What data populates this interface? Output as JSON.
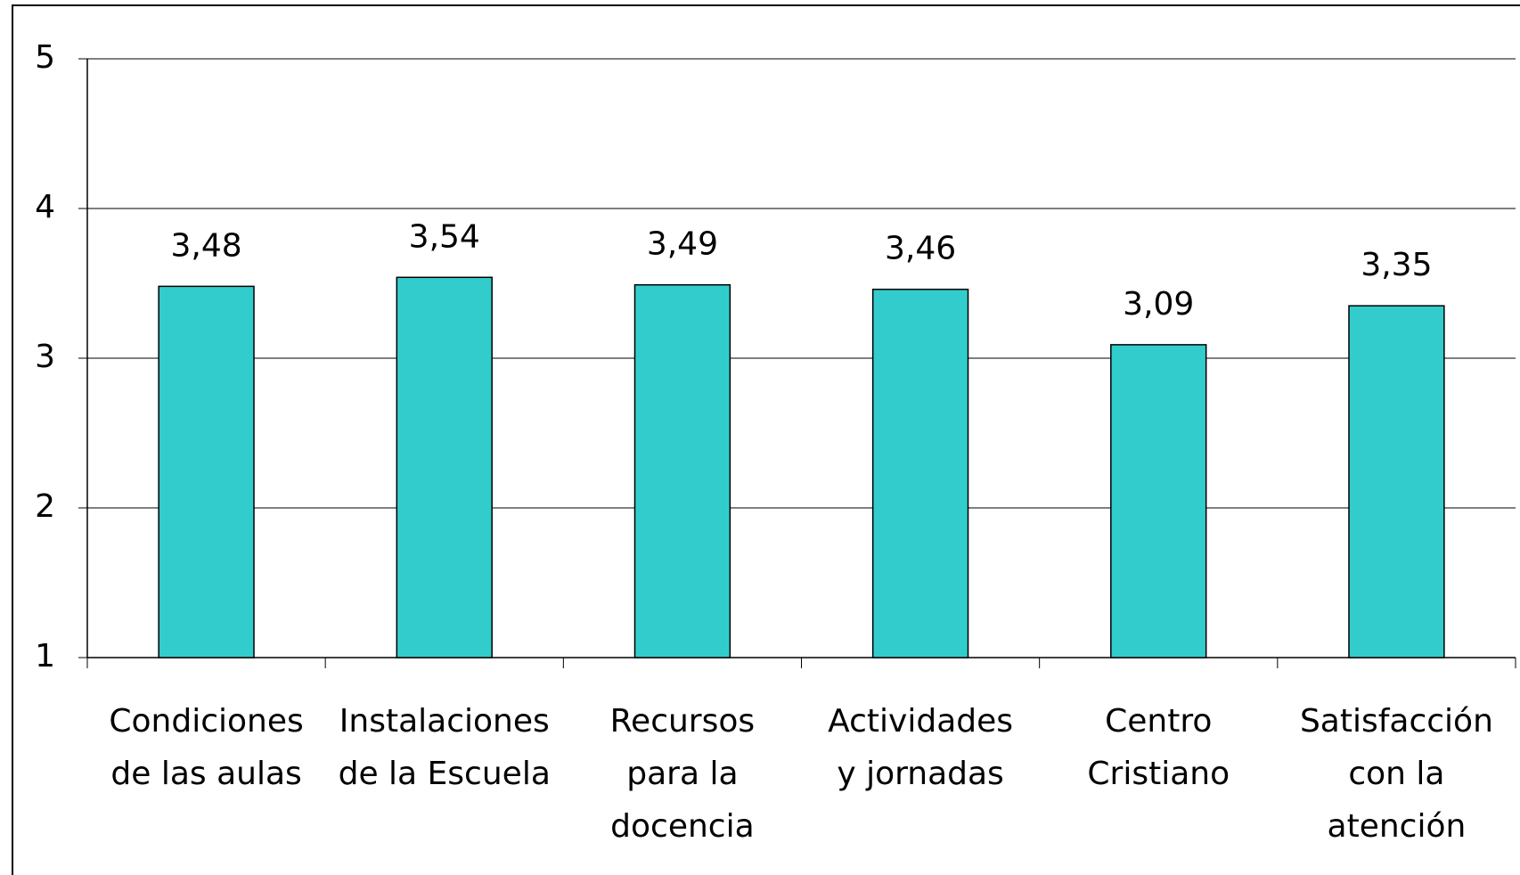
{
  "chart_data": {
    "type": "bar",
    "categories": [
      [
        "Condiciones",
        "de las aulas"
      ],
      [
        "Instalaciones",
        "de la Escuela"
      ],
      [
        "Recursos",
        "para la",
        "docencia"
      ],
      [
        "Actividades",
        "y jornadas"
      ],
      [
        "Centro",
        "Cristiano"
      ],
      [
        "Satisfacción",
        "con la",
        "atención"
      ]
    ],
    "values": [
      3.48,
      3.54,
      3.49,
      3.46,
      3.09,
      3.35
    ],
    "value_labels": [
      "3,48",
      "3,54",
      "3,49",
      "3,46",
      "3,09",
      "3,35"
    ],
    "color": "#33cccc",
    "ylim": [
      1,
      5
    ],
    "yticks": [
      1,
      2,
      3,
      4,
      5
    ],
    "grid": true
  }
}
